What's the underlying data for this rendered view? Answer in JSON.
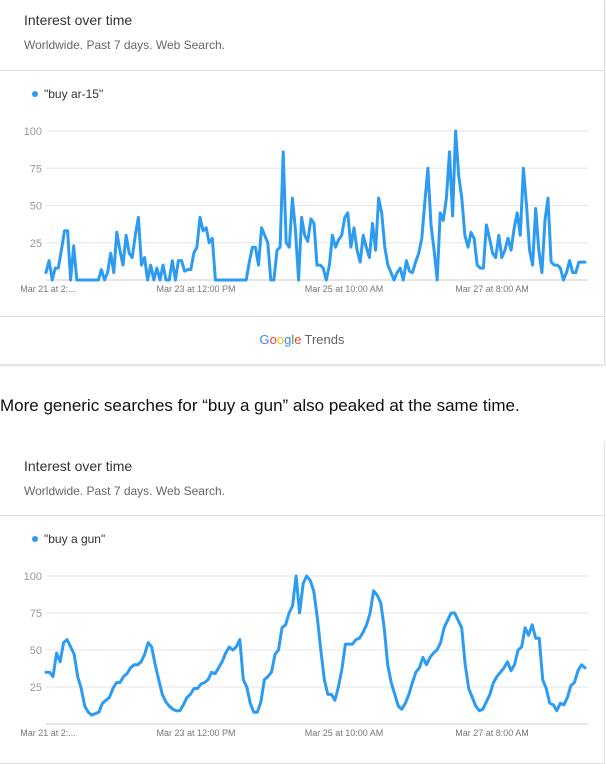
{
  "card1": {
    "title": "Interest over time",
    "subtitle": "Worldwide. Past 7 days. Web Search.",
    "legend": "\"buy ar-15\"",
    "brand_google": [
      "G",
      "o",
      "o",
      "g",
      "l",
      "e"
    ],
    "brand_trends": "Trends"
  },
  "caption": "More generic searches for “buy a gun” also peaked at the same time.",
  "card2": {
    "title": "Interest over time",
    "subtitle": "Worldwide. Past 7 days. Web Search.",
    "legend": "\"buy a gun\""
  },
  "colors": {
    "series": "#2d9cf0",
    "grid": "#e6e6e6",
    "tick": "#999999"
  },
  "chart_data": [
    {
      "type": "line",
      "title": "Interest over time",
      "subtitle": "Worldwide. Past 7 days. Web Search.",
      "series": [
        {
          "name": "\"buy ar-15\"",
          "values": [
            5,
            13,
            0,
            8,
            8,
            20,
            33,
            33,
            0,
            23,
            0,
            0,
            0,
            0,
            0,
            0,
            0,
            0,
            7,
            0,
            5,
            18,
            5,
            32,
            20,
            10,
            30,
            18,
            15,
            30,
            42,
            10,
            15,
            0,
            10,
            0,
            8,
            0,
            10,
            0,
            0,
            13,
            0,
            13,
            13,
            6,
            7,
            7,
            18,
            22,
            42,
            33,
            35,
            25,
            28,
            0,
            0,
            0,
            0,
            0,
            0,
            0,
            0,
            0,
            0,
            0,
            12,
            22,
            22,
            10,
            35,
            30,
            25,
            0,
            0,
            20,
            22,
            86,
            25,
            22,
            55,
            33,
            0,
            42,
            30,
            26,
            41,
            38,
            10,
            10,
            8,
            0,
            10,
            30,
            22,
            27,
            30,
            42,
            45,
            22,
            35,
            20,
            12,
            30,
            22,
            15,
            38,
            20,
            55,
            45,
            22,
            10,
            5,
            0,
            5,
            8,
            0,
            13,
            6,
            5,
            12,
            18,
            28,
            52,
            75,
            37,
            20,
            0,
            45,
            40,
            55,
            86,
            43,
            100,
            70,
            55,
            30,
            22,
            32,
            28,
            10,
            8,
            8,
            37,
            28,
            18,
            15,
            30,
            15,
            20,
            28,
            20,
            35,
            45,
            30,
            75,
            50,
            20,
            10,
            48,
            20,
            5,
            40,
            55,
            12,
            10,
            10,
            8,
            0,
            5,
            13,
            5,
            5,
            12,
            12,
            12
          ]
        }
      ],
      "x_tick_labels": [
        "Mar 21 at 2:...",
        "Mar 23 at 12:00 PM",
        "Mar 25 at 10:00 AM",
        "Mar 27 at 8:00 AM"
      ],
      "y_ticks": [
        100,
        75,
        50,
        25
      ],
      "ylim": [
        0,
        100
      ],
      "grid": true,
      "legend_position": "top-left"
    },
    {
      "type": "line",
      "title": "Interest over time",
      "subtitle": "Worldwide. Past 7 days. Web Search.",
      "series": [
        {
          "name": "\"buy a gun\"",
          "values": [
            35,
            35,
            32,
            48,
            42,
            55,
            57,
            52,
            47,
            32,
            24,
            12,
            8,
            6,
            7,
            8,
            14,
            16,
            18,
            24,
            28,
            28,
            32,
            34,
            38,
            40,
            40,
            42,
            47,
            55,
            52,
            40,
            30,
            20,
            15,
            12,
            10,
            9,
            9,
            13,
            18,
            20,
            24,
            24,
            27,
            28,
            30,
            35,
            34,
            38,
            42,
            48,
            52,
            50,
            52,
            57,
            30,
            25,
            14,
            8,
            8,
            15,
            30,
            32,
            35,
            47,
            50,
            65,
            67,
            75,
            80,
            100,
            75,
            95,
            100,
            97,
            90,
            72,
            50,
            30,
            20,
            20,
            16,
            25,
            37,
            54,
            54,
            54,
            57,
            58,
            62,
            67,
            75,
            90,
            87,
            82,
            65,
            40,
            28,
            20,
            12,
            10,
            14,
            20,
            28,
            35,
            38,
            45,
            40,
            45,
            48,
            50,
            55,
            65,
            70,
            75,
            75,
            70,
            65,
            40,
            24,
            18,
            12,
            9,
            10,
            15,
            20,
            28,
            32,
            35,
            38,
            42,
            36,
            40,
            50,
            52,
            65,
            60,
            67,
            58,
            58,
            30,
            24,
            14,
            13,
            9,
            14,
            13,
            18,
            26,
            28,
            36,
            40,
            38
          ]
        }
      ],
      "x_tick_labels": [
        "Mar 21 at 2:...",
        "Mar 23 at 12:00 PM",
        "Mar 25 at 10:00 AM",
        "Mar 27 at 8:00 AM"
      ],
      "y_ticks": [
        100,
        75,
        50,
        25
      ],
      "ylim": [
        0,
        100
      ],
      "grid": true,
      "legend_position": "top-left"
    }
  ]
}
